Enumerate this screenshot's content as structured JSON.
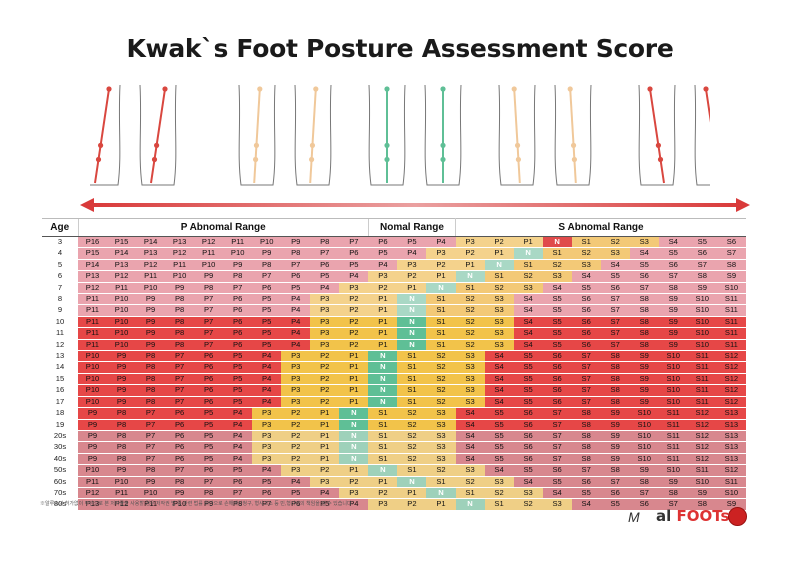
{
  "title": "Kwak`s Foot Posture Assessment Score",
  "headers": {
    "age": "Age",
    "p": "P Abnomal Range",
    "n": "Nomal Range",
    "s": "S Abnomal Range"
  },
  "zones": {
    "p": [
      "#e89aa6",
      "#f0c27a",
      "#fde4bf"
    ],
    "n": [
      "#d9f0e4",
      "#9fd8bd",
      "#7ac6a5"
    ],
    "s": [
      "#f8c7c1",
      "#eb8e8b",
      "#d53f47"
    ]
  },
  "rows": [
    {
      "age": "3",
      "scores": [
        "P16",
        "P15",
        "P14",
        "P13",
        "P12",
        "P11",
        "P10",
        "P9",
        "P8",
        "P7",
        "P6",
        "P5",
        "P4",
        "P3",
        "P2",
        "P1",
        "N",
        "S1",
        "S2",
        "S3",
        "S4",
        "S5",
        "S6"
      ],
      "group": "a"
    },
    {
      "age": "4",
      "scores": [
        "P15",
        "P14",
        "P13",
        "P12",
        "P11",
        "P10",
        "P9",
        "P8",
        "P7",
        "P6",
        "P5",
        "P4",
        "P3",
        "P2",
        "P1",
        "N",
        "S1",
        "S2",
        "S3",
        "S4",
        "S5",
        "S6",
        "S7"
      ],
      "group": "a"
    },
    {
      "age": "5",
      "scores": [
        "P14",
        "P13",
        "P12",
        "P11",
        "P10",
        "P9",
        "P8",
        "P7",
        "P6",
        "P5",
        "P4",
        "P3",
        "P2",
        "P1",
        "N",
        "S1",
        "S2",
        "S3",
        "S4",
        "S5",
        "S6",
        "S7",
        "S8"
      ],
      "group": "a"
    },
    {
      "age": "6",
      "scores": [
        "P13",
        "P12",
        "P11",
        "P10",
        "P9",
        "P8",
        "P7",
        "P6",
        "P5",
        "P4",
        "P3",
        "P2",
        "P1",
        "N",
        "S1",
        "S2",
        "S3",
        "S4",
        "S5",
        "S6",
        "S7",
        "S8",
        "S9"
      ],
      "group": "a"
    },
    {
      "age": "7",
      "scores": [
        "P12",
        "P11",
        "P10",
        "P9",
        "P8",
        "P7",
        "P6",
        "P5",
        "P4",
        "P3",
        "P2",
        "P1",
        "N",
        "S1",
        "S2",
        "S3",
        "S4",
        "S5",
        "S6",
        "S7",
        "S8",
        "S9",
        "S10"
      ],
      "group": "a"
    },
    {
      "age": "8",
      "scores": [
        "P11",
        "P10",
        "P9",
        "P8",
        "P7",
        "P6",
        "P5",
        "P4",
        "P3",
        "P2",
        "P1",
        "N",
        "S1",
        "S2",
        "S3",
        "S4",
        "S5",
        "S6",
        "S7",
        "S8",
        "S9",
        "S10",
        "S11"
      ],
      "group": "a"
    },
    {
      "age": "9",
      "scores": [
        "P11",
        "P10",
        "P9",
        "P8",
        "P7",
        "P6",
        "P5",
        "P4",
        "P3",
        "P2",
        "P1",
        "N",
        "S1",
        "S2",
        "S3",
        "S4",
        "S5",
        "S6",
        "S7",
        "S8",
        "S9",
        "S10",
        "S11"
      ],
      "group": "a"
    },
    {
      "age": "10",
      "scores": [
        "P11",
        "P10",
        "P9",
        "P8",
        "P7",
        "P6",
        "P5",
        "P4",
        "P3",
        "P2",
        "P1",
        "N",
        "S1",
        "S2",
        "S3",
        "S4",
        "S5",
        "S6",
        "S7",
        "S8",
        "S9",
        "S10",
        "S11"
      ],
      "group": "b"
    },
    {
      "age": "11",
      "scores": [
        "P11",
        "P10",
        "P9",
        "P8",
        "P7",
        "P6",
        "P5",
        "P4",
        "P3",
        "P2",
        "P1",
        "N",
        "S1",
        "S2",
        "S3",
        "S4",
        "S5",
        "S6",
        "S7",
        "S8",
        "S9",
        "S10",
        "S11"
      ],
      "group": "b"
    },
    {
      "age": "12",
      "scores": [
        "P11",
        "P10",
        "P9",
        "P8",
        "P7",
        "P6",
        "P5",
        "P4",
        "P3",
        "P2",
        "P1",
        "N",
        "S1",
        "S2",
        "S3",
        "S4",
        "S5",
        "S6",
        "S7",
        "S8",
        "S9",
        "S10",
        "S11"
      ],
      "group": "b"
    },
    {
      "age": "13",
      "scores": [
        "P10",
        "P9",
        "P8",
        "P7",
        "P6",
        "P5",
        "P4",
        "P3",
        "P2",
        "P1",
        "N",
        "S1",
        "S2",
        "S3",
        "S4",
        "S5",
        "S6",
        "S7",
        "S8",
        "S9",
        "S10",
        "S11",
        "S12"
      ],
      "group": "b"
    },
    {
      "age": "14",
      "scores": [
        "P10",
        "P9",
        "P8",
        "P7",
        "P6",
        "P5",
        "P4",
        "P3",
        "P2",
        "P1",
        "N",
        "S1",
        "S2",
        "S3",
        "S4",
        "S5",
        "S6",
        "S7",
        "S8",
        "S9",
        "S10",
        "S11",
        "S12"
      ],
      "group": "b"
    },
    {
      "age": "15",
      "scores": [
        "P10",
        "P9",
        "P8",
        "P7",
        "P6",
        "P5",
        "P4",
        "P3",
        "P2",
        "P1",
        "N",
        "S1",
        "S2",
        "S3",
        "S4",
        "S5",
        "S6",
        "S7",
        "S8",
        "S9",
        "S10",
        "S11",
        "S12"
      ],
      "group": "b"
    },
    {
      "age": "16",
      "scores": [
        "P10",
        "P9",
        "P8",
        "P7",
        "P6",
        "P5",
        "P4",
        "P3",
        "P2",
        "P1",
        "N",
        "S1",
        "S2",
        "S3",
        "S4",
        "S5",
        "S6",
        "S7",
        "S8",
        "S9",
        "S10",
        "S11",
        "S12"
      ],
      "group": "b"
    },
    {
      "age": "17",
      "scores": [
        "P10",
        "P9",
        "P8",
        "P7",
        "P6",
        "P5",
        "P4",
        "P3",
        "P2",
        "P1",
        "N",
        "S1",
        "S2",
        "S3",
        "S4",
        "S5",
        "S6",
        "S7",
        "S8",
        "S9",
        "S10",
        "S11",
        "S12"
      ],
      "group": "b"
    },
    {
      "age": "18",
      "scores": [
        "P9",
        "P8",
        "P7",
        "P6",
        "P5",
        "P4",
        "P3",
        "P2",
        "P1",
        "N",
        "S1",
        "S2",
        "S3",
        "S4",
        "S5",
        "S6",
        "S7",
        "S8",
        "S9",
        "S10",
        "S11",
        "S12",
        "S13"
      ],
      "group": "b"
    },
    {
      "age": "19",
      "scores": [
        "P9",
        "P8",
        "P7",
        "P6",
        "P5",
        "P4",
        "P3",
        "P2",
        "P1",
        "N",
        "S1",
        "S2",
        "S3",
        "S4",
        "S5",
        "S6",
        "S7",
        "S8",
        "S9",
        "S10",
        "S11",
        "S12",
        "S13"
      ],
      "group": "b"
    },
    {
      "age": "20s",
      "scores": [
        "P9",
        "P8",
        "P7",
        "P6",
        "P5",
        "P4",
        "P3",
        "P2",
        "P1",
        "N",
        "S1",
        "S2",
        "S3",
        "S4",
        "S5",
        "S6",
        "S7",
        "S8",
        "S9",
        "S10",
        "S11",
        "S12",
        "S13"
      ],
      "group": "c"
    },
    {
      "age": "30s",
      "scores": [
        "P9",
        "P8",
        "P7",
        "P6",
        "P5",
        "P4",
        "P3",
        "P2",
        "P1",
        "N",
        "S1",
        "S2",
        "S3",
        "S4",
        "S5",
        "S6",
        "S7",
        "S8",
        "S9",
        "S10",
        "S11",
        "S12",
        "S13"
      ],
      "group": "c"
    },
    {
      "age": "40s",
      "scores": [
        "P9",
        "P8",
        "P7",
        "P6",
        "P5",
        "P4",
        "P3",
        "P2",
        "P1",
        "N",
        "S1",
        "S2",
        "S3",
        "S4",
        "S5",
        "S6",
        "S7",
        "S8",
        "S9",
        "S10",
        "S11",
        "S12",
        "S13"
      ],
      "group": "c"
    },
    {
      "age": "50s",
      "scores": [
        "P10",
        "P9",
        "P8",
        "P7",
        "P6",
        "P5",
        "P4",
        "P3",
        "P2",
        "P1",
        "N",
        "S1",
        "S2",
        "S3",
        "S4",
        "S5",
        "S6",
        "S7",
        "S8",
        "S9",
        "S10",
        "S11",
        "S12"
      ],
      "group": "c"
    },
    {
      "age": "60s",
      "scores": [
        "P11",
        "P10",
        "P9",
        "P8",
        "P7",
        "P6",
        "P5",
        "P4",
        "P3",
        "P2",
        "P1",
        "N",
        "S1",
        "S2",
        "S3",
        "S4",
        "S5",
        "S6",
        "S7",
        "S8",
        "S9",
        "S10",
        "S11"
      ],
      "group": "c"
    },
    {
      "age": "70s",
      "scores": [
        "P12",
        "P11",
        "P10",
        "P9",
        "P8",
        "P7",
        "P6",
        "P5",
        "P4",
        "P3",
        "P2",
        "P1",
        "N",
        "S1",
        "S2",
        "S3",
        "S4",
        "S5",
        "S6",
        "S7",
        "S8",
        "S9",
        "S10"
      ],
      "group": "c"
    },
    {
      "age": "80s",
      "scores": [
        "P13",
        "P12",
        "P11",
        "P10",
        "P9",
        "P8",
        "P7",
        "P6",
        "P5",
        "P4",
        "P3",
        "P2",
        "P1",
        "N",
        "S1",
        "S2",
        "S3",
        "S4",
        "S5",
        "S6",
        "S7",
        "S8",
        "S9"
      ],
      "group": "c"
    }
  ],
  "group_colors": {
    "a": [
      "#e8a3ad",
      "#e8a3ad",
      "#e8a3ad",
      "#e8a3ad",
      "#e8a3ad",
      "#e8a3ad",
      "#e8a3ad",
      "#f3d07a",
      "#f3d07a",
      "#f3d07a",
      "#a9d8c5",
      "#a9d8c5",
      "#a9d8c5",
      "#f3c77a",
      "#f3c77a",
      "#f3c77a",
      "#e4544f",
      "#e4544f",
      "#e4544f",
      "#ecb4b8",
      "#ecb4b8",
      "#ecb4b8",
      "#ecb4b8"
    ],
    "b": [
      "#e84a4a",
      "#e84a4a",
      "#e84a4a",
      "#e84a4a",
      "#e84a4a",
      "#e84a4a",
      "#e84a4a",
      "#f2c444",
      "#f2c444",
      "#f2c444",
      "#5fbf96",
      "#5fbf96",
      "#5fbf96",
      "#f2c444",
      "#f2c444",
      "#f2c444",
      "#e84a4a",
      "#e84a4a",
      "#e84a4a",
      "#e84a4a",
      "#e84a4a",
      "#e84a4a",
      "#e84a4a"
    ],
    "c": [
      "#d88a90",
      "#d88a90",
      "#d88a90",
      "#d88a90",
      "#d88a90",
      "#d88a90",
      "#d88a90",
      "#efd08a",
      "#efd08a",
      "#efd08a",
      "#9fd1bc",
      "#9fd1bc",
      "#9fd1bc",
      "#efd08a",
      "#efd08a",
      "#efd08a",
      "#d88a90",
      "#d88a90",
      "#d88a90",
      "#d88a90",
      "#d88a90",
      "#d88a90",
      "#d88a90"
    ]
  },
  "footnote": "※알루스의 허가없이 무단으로 본 저작물을 사용할 경우 저작권 법 등 관련 법률 위반으로 손해배상청구, 형사고소 등 민,형사상의 책임을 질 수 있습니다.",
  "logo": {
    "mark": "M",
    "brand_pre": "al ",
    "brand": "FOOTs"
  }
}
